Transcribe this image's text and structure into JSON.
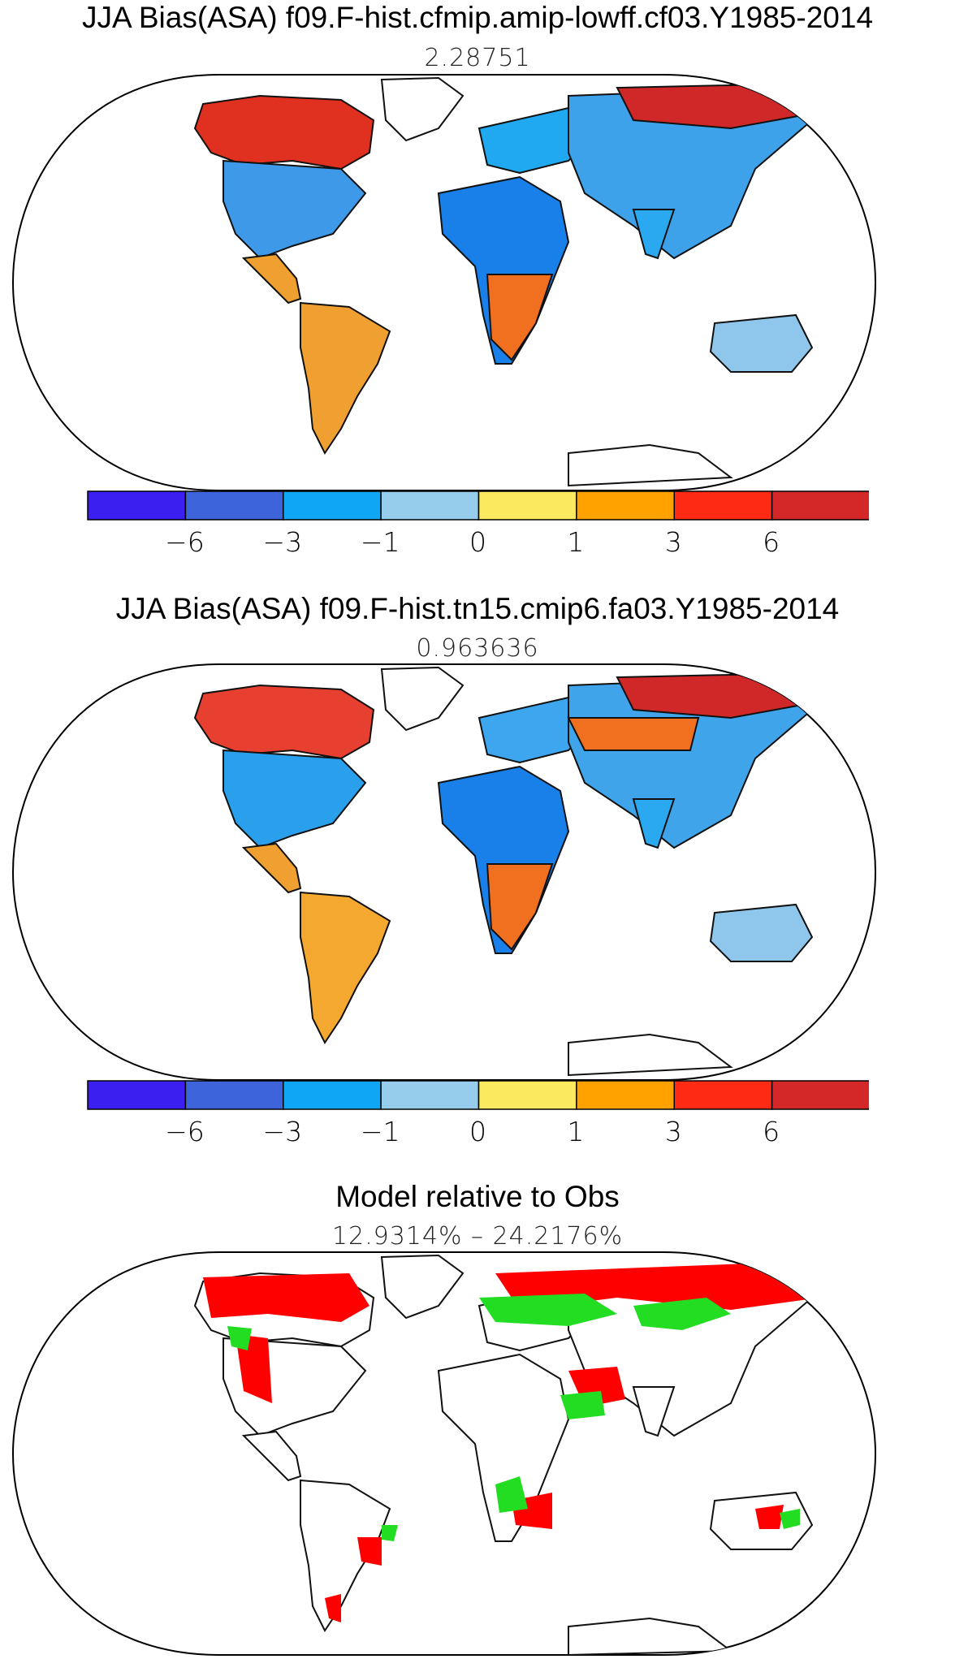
{
  "panels": [
    {
      "id": "panel1",
      "title": "JJA Bias(ASA) f09.F-hist.cfmip.amip-lowff.cf03.Y1985-2014",
      "subtitle": "2.28751"
    },
    {
      "id": "panel2",
      "title": "JJA Bias(ASA) f09.F-hist.tn15.cmip6.fa03.Y1985-2014",
      "subtitle": "0.963636"
    },
    {
      "id": "panel3",
      "title": "Model relative to Obs",
      "subtitle": "12.9314% – 24.2176%"
    }
  ],
  "colorbar": {
    "bins": [
      {
        "color": "#3b1ff0"
      },
      {
        "color": "#3e64dc"
      },
      {
        "color": "#0ea6f5"
      },
      {
        "color": "#96cdec"
      },
      {
        "color": "#fbe960"
      },
      {
        "color": "#ffa200"
      },
      {
        "color": "#ff2a14"
      },
      {
        "color": "#d42828"
      }
    ],
    "tick_labels": [
      "−6",
      "−3",
      "−1",
      "0",
      "1",
      "3",
      "6"
    ]
  },
  "relative_colors": {
    "better": "#22dd22",
    "worse": "#ff0000"
  }
}
